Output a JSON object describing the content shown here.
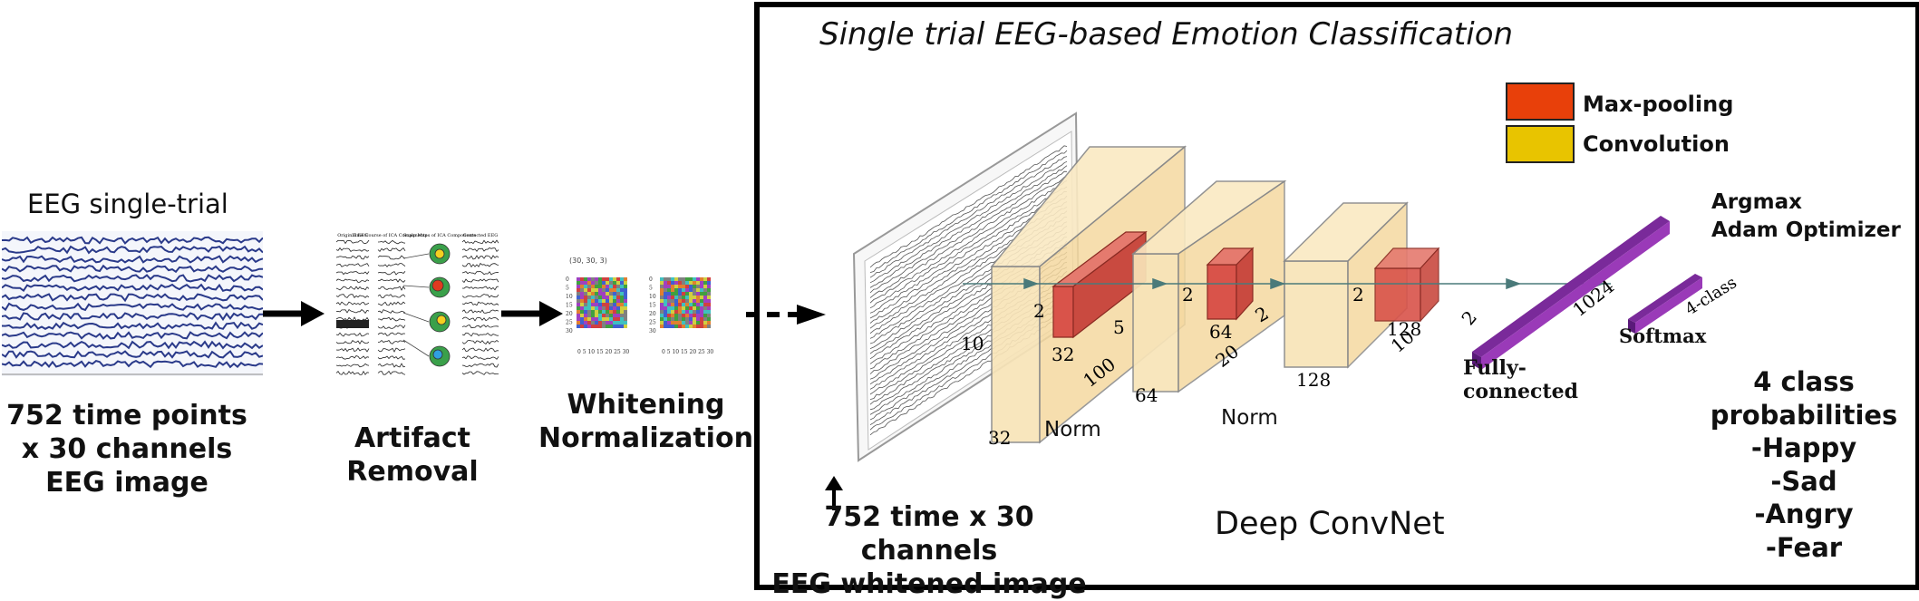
{
  "left": {
    "eeg_title": "EEG single-trial",
    "eeg_caption": "752 time points\nx 30 channels\nEEG image",
    "artifact_caption": "Artifact\nRemoval",
    "artifact_panels": [
      "Original EEG",
      "Time Course of ICA Components",
      "Scalp Maps of ICA Components",
      "Corrected EEG"
    ],
    "whitening_caption": "Whitening\nNormalization",
    "whitening_shape": "(30, 30, 3)",
    "whitening_yticks": [
      "0",
      "5",
      "10",
      "15",
      "20",
      "25",
      "30"
    ],
    "whitening_xticks": "0 5 10 15 20 25 30"
  },
  "box": {
    "title": "Single trial EEG-based Emotion Classification",
    "legend": [
      {
        "label": "Max-pooling",
        "color": "#e8400a"
      },
      {
        "label": "Convolution",
        "color": "#e8c400"
      }
    ],
    "input_caption": "752 time x 30 channels\nEEG whitened image",
    "net_caption": "Deep ConvNet",
    "norm1": "Norm",
    "norm2": "Norm",
    "argmax": "Argmax\nAdam Optimizer",
    "fc_label": "Fully-\nconnected",
    "softmax_label": "Softmax",
    "probabilities": "4 class\nprobabilities\n-Happy\n-Sad\n-Angry\n-Fear",
    "dims": {
      "c1_depth": "32",
      "c1_h": "10",
      "p1_k": "2",
      "p1_ch": "32",
      "p1_w": "5",
      "c2_depth": "64",
      "c2_w": "100",
      "p2_k": "2",
      "p2_ch": "64",
      "p2_w": "20",
      "c3_depth": "128",
      "p3_k": "2",
      "p3_k2": "2",
      "p3_ch": "128",
      "p3_w": "10",
      "fc_k": "2",
      "fc_units": "1024",
      "out": "4-class"
    }
  }
}
